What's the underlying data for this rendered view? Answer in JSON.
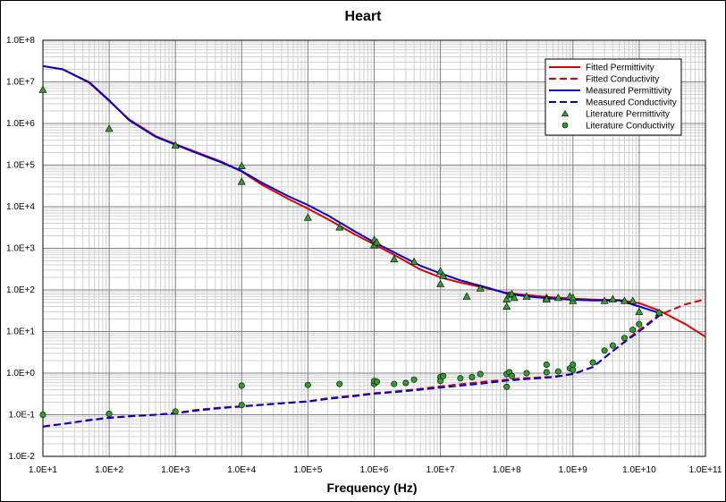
{
  "chart_data": {
    "type": "line",
    "title": "Heart",
    "xlabel": "Frequency (Hz)",
    "ylabel": "",
    "xscale": "log",
    "yscale": "log",
    "xlim": [
      10,
      100000000000
    ],
    "ylim": [
      0.01,
      100000000
    ],
    "x_tick_labels": [
      "1.0E+1",
      "1.0E+2",
      "1.0E+3",
      "1.0E+4",
      "1.0E+5",
      "1.0E+6",
      "1.0E+7",
      "1.0E+8",
      "1.0E+9",
      "1.0E+10",
      "1.0E+11"
    ],
    "y_tick_labels": [
      "1.0E-2",
      "1.0E-1",
      "1.0E+0",
      "1.0E+1",
      "1.0E+2",
      "1.0E+3",
      "1.0E+4",
      "1.0E+5",
      "1.0E+6",
      "1.0E+7",
      "1.0E+8"
    ],
    "grid": true,
    "legend_position": "top-right",
    "colors": {
      "fitted": "#e00000",
      "measured": "#0000cc",
      "literature": "#2e9e2e"
    },
    "series": [
      {
        "name": "Fitted Permittivity",
        "style": "solid",
        "color": "#e00000",
        "x": [
          10,
          20,
          50,
          100,
          200,
          500,
          1000,
          2000,
          5000,
          10000,
          20000,
          50000,
          100000,
          200000,
          500000,
          1000000,
          2000000,
          5000000,
          10000000,
          20000000,
          50000000,
          100000000,
          200000000,
          500000000,
          1000000000,
          2000000000,
          5000000000,
          10000000000,
          20000000000,
          50000000000,
          100000000000
        ],
        "y": [
          24000000,
          20000000,
          9500000,
          3500000,
          1250000,
          500000,
          320000,
          210000,
          120000,
          70000,
          34000,
          15500,
          9000,
          5000,
          2200,
          1250,
          700,
          310,
          200,
          150,
          110,
          85,
          75,
          66,
          62,
          59,
          57,
          48,
          32,
          15,
          7.5
        ]
      },
      {
        "name": "Fitted Conductivity",
        "style": "dashed",
        "color": "#e00000",
        "x": [
          10,
          20,
          50,
          100,
          200,
          500,
          1000,
          2000,
          5000,
          10000,
          20000,
          50000,
          100000,
          200000,
          500000,
          1000000,
          2000000,
          5000000,
          10000000,
          20000000,
          50000000,
          100000000,
          200000000,
          500000000,
          1000000000,
          2000000000,
          5000000000,
          10000000000,
          20000000000,
          50000000000,
          100000000000
        ],
        "y": [
          0.052,
          0.06,
          0.075,
          0.085,
          0.092,
          0.1,
          0.11,
          0.13,
          0.15,
          0.16,
          0.175,
          0.195,
          0.21,
          0.25,
          0.29,
          0.33,
          0.36,
          0.42,
          0.48,
          0.54,
          0.63,
          0.7,
          0.76,
          0.82,
          0.95,
          1.4,
          4.5,
          11,
          25,
          45,
          60
        ]
      },
      {
        "name": "Measured Permittivity",
        "style": "solid",
        "color": "#0000cc",
        "x": [
          10,
          20,
          50,
          100,
          200,
          500,
          1000,
          2000,
          5000,
          10000,
          20000,
          50000,
          100000,
          200000,
          500000,
          1000000,
          2000000,
          5000000,
          10000000,
          20000000,
          50000000,
          100000000,
          200000000,
          500000000,
          1000000000,
          2000000000,
          5000000000,
          10000000000,
          20000000000
        ],
        "y": [
          24000000,
          20000000,
          9800000,
          3600000,
          1200000,
          480000,
          310000,
          200000,
          115000,
          72000,
          38000,
          18000,
          11000,
          6200,
          2600,
          1400,
          800,
          380,
          250,
          170,
          115,
          82,
          70,
          62,
          58,
          56,
          56,
          40,
          28
        ]
      },
      {
        "name": "Measured Conductivity",
        "style": "dashed",
        "color": "#0000cc",
        "x": [
          10,
          20,
          50,
          100,
          200,
          500,
          1000,
          2000,
          5000,
          10000,
          20000,
          50000,
          100000,
          200000,
          500000,
          1000000,
          2000000,
          5000000,
          10000000,
          20000000,
          50000000,
          100000000,
          200000000,
          500000000,
          1000000000,
          2000000000,
          5000000000,
          10000000000,
          20000000000
        ],
        "y": [
          0.052,
          0.06,
          0.074,
          0.084,
          0.092,
          0.1,
          0.108,
          0.125,
          0.145,
          0.158,
          0.172,
          0.192,
          0.208,
          0.24,
          0.28,
          0.32,
          0.35,
          0.4,
          0.45,
          0.5,
          0.58,
          0.66,
          0.72,
          0.8,
          0.95,
          1.4,
          4.5,
          10,
          24
        ]
      },
      {
        "name": "Literature Permittivity",
        "style": "triangle",
        "color": "#2e9e2e",
        "x": [
          10,
          100,
          1000,
          10000,
          10000,
          100000,
          300000,
          1000000,
          1000000,
          1100000,
          2000000,
          4000000,
          10000000,
          10000000,
          11000000,
          25000000,
          40000000,
          100000000,
          100000000,
          110000000,
          120000000,
          130000000,
          200000000,
          400000000,
          400000000,
          600000000,
          900000000,
          1000000000,
          1000000000,
          3000000000,
          4000000000,
          6000000000,
          8000000000,
          10000000000,
          20000000000
        ],
        "y": [
          6500000,
          750000,
          300000,
          95000,
          40000,
          5500,
          3200,
          1600,
          1200,
          1400,
          550,
          480,
          280,
          140,
          220,
          70,
          110,
          60,
          40,
          75,
          80,
          65,
          70,
          65,
          60,
          65,
          70,
          55,
          65,
          55,
          60,
          55,
          55,
          30,
          28
        ]
      },
      {
        "name": "Literature Conductivity",
        "style": "circle",
        "color": "#2e9e2e",
        "x": [
          10,
          100,
          1000,
          10000,
          10000,
          100000,
          300000,
          1000000,
          1000000,
          1100000,
          2000000,
          3000000,
          4000000,
          10000000,
          10000000,
          11000000,
          20000000,
          30000000,
          40000000,
          100000000,
          100000000,
          110000000,
          120000000,
          200000000,
          400000000,
          400000000,
          600000000,
          900000000,
          1000000000,
          1000000000,
          2000000000,
          3000000000,
          4000000000,
          6000000000,
          8000000000,
          10000000000,
          20000000000
        ],
        "y": [
          0.1,
          0.105,
          0.12,
          0.5,
          0.17,
          0.52,
          0.55,
          0.55,
          0.65,
          0.62,
          0.55,
          0.58,
          0.7,
          0.8,
          0.65,
          0.85,
          0.75,
          0.8,
          0.95,
          0.47,
          0.95,
          1.05,
          0.85,
          1.0,
          1.6,
          1.05,
          1.1,
          1.3,
          1.6,
          1.2,
          1.8,
          3.5,
          4.6,
          7,
          11,
          15,
          28
        ]
      }
    ]
  }
}
